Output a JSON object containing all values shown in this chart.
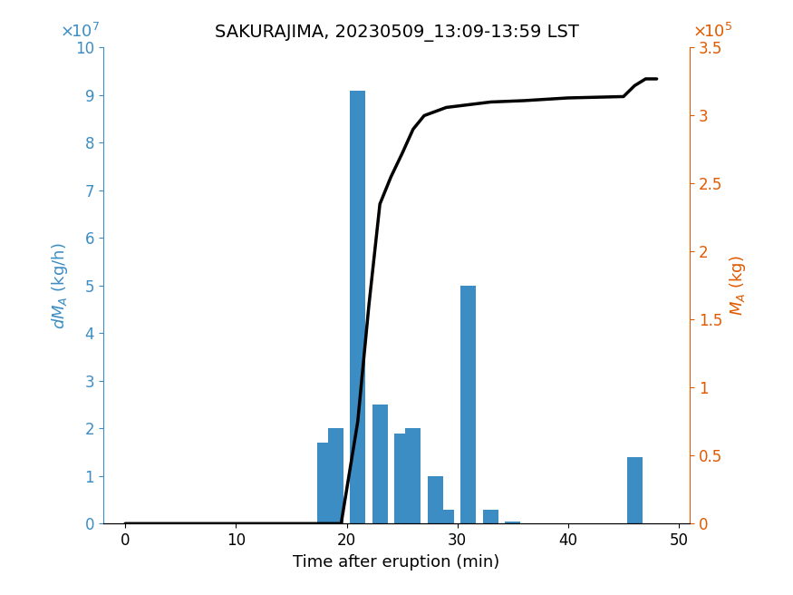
{
  "title": "SAKURAJIMA, 20230509_13:09-13:59 LST",
  "xlabel": "Time after eruption (min)",
  "ylabel_left": "dM_A (kg/h)",
  "ylabel_right": "M_A (kg)",
  "bar_positions": [
    18,
    19,
    21,
    23,
    25,
    26,
    28,
    29,
    31,
    33,
    35,
    36,
    46
  ],
  "bar_heights": [
    17000000.0,
    20000000.0,
    91000000.0,
    25000000.0,
    19000000.0,
    20000000.0,
    10000000.0,
    3000000.0,
    50000000.0,
    3000000.0,
    500000.0,
    0.0,
    14000000.0
  ],
  "bar_color": "#3C8DC4",
  "bar_width": 1.4,
  "line_x": [
    0,
    19.5,
    20,
    21,
    22,
    23,
    24,
    25,
    26,
    27,
    28,
    29,
    30,
    31,
    32,
    33,
    36,
    38,
    40,
    45,
    46,
    47,
    48
  ],
  "line_y": [
    0,
    0,
    25000.0,
    75000.0,
    160000.0,
    235000.0,
    255000.0,
    272000.0,
    290000.0,
    300000.0,
    303000.0,
    306000.0,
    307000.0,
    308000.0,
    309000.0,
    310000.0,
    311000.0,
    312000.0,
    313000.0,
    314000.0,
    322000.0,
    327000.0,
    327000.0
  ],
  "line_color": "#000000",
  "line_width": 2.5,
  "xlim": [
    -2,
    51
  ],
  "ylim_left": [
    0,
    100000000.0
  ],
  "ylim_right": [
    0,
    350000.0
  ],
  "xticks": [
    0,
    10,
    20,
    30,
    40,
    50
  ],
  "yticks_left": [
    0,
    10000000.0,
    20000000.0,
    30000000.0,
    40000000.0,
    50000000.0,
    60000000.0,
    70000000.0,
    80000000.0,
    90000000.0,
    100000000.0
  ],
  "yticks_right_vals": [
    0,
    0.5,
    1.0,
    1.5,
    2.0,
    2.5,
    3.0,
    3.5
  ],
  "left_axis_color": "#3C8DC4",
  "right_axis_color": "#E05A00",
  "title_fontsize": 14,
  "label_fontsize": 13,
  "tick_fontsize": 12,
  "fig_width": 8.75,
  "fig_height": 6.56,
  "dpi": 100
}
